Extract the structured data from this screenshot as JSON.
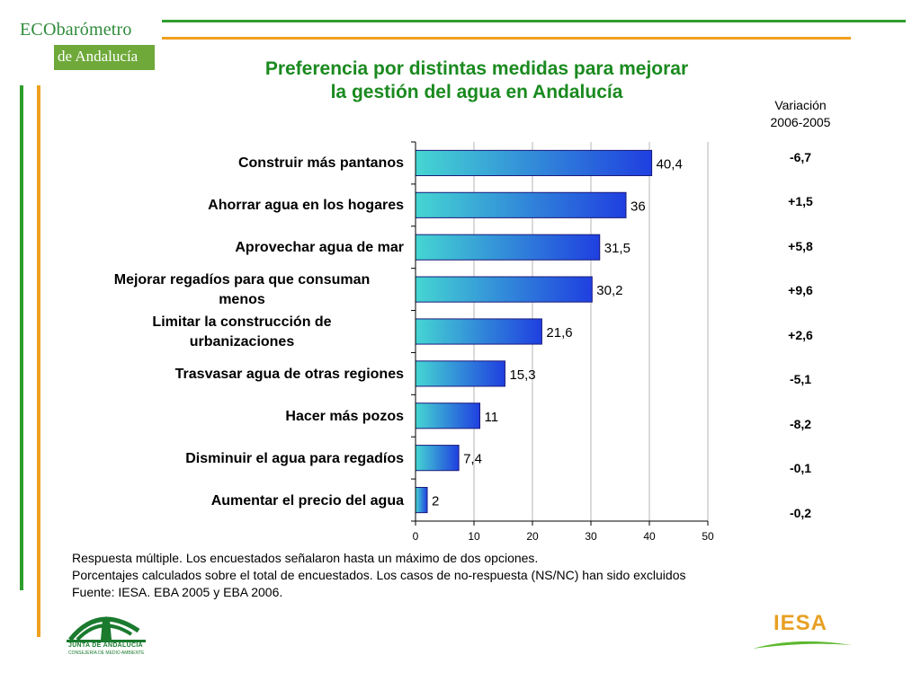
{
  "logo": {
    "eco_prefix": "ECO",
    "eco_word": "barómetro",
    "eco_region": "de Andalucía"
  },
  "title_line1": "Preferencia por distintas medidas para mejorar",
  "title_line2": "la gestión del agua en Andalucía",
  "variation_header_line1": "Variación",
  "variation_header_line2": "2006-2005",
  "variations": [
    "-6,7",
    "+1,5",
    "+5,8",
    "+9,6",
    "+2,6",
    "-5,1",
    "-8,2",
    "-0,1",
    "-0,2"
  ],
  "chart_data": {
    "type": "bar",
    "orientation": "horizontal",
    "categories": [
      [
        "Construir más pantanos"
      ],
      [
        "Ahorrar agua en los hogares"
      ],
      [
        "Aprovechar agua de mar"
      ],
      [
        "Mejorar regadíos para que consuman",
        "menos"
      ],
      [
        "Limitar la construcción de",
        "urbanizaciones"
      ],
      [
        "Trasvasar agua de otras regiones"
      ],
      [
        "Hacer más pozos"
      ],
      [
        "Disminuir el agua para regadíos"
      ],
      [
        "Aumentar el precio del agua"
      ]
    ],
    "values": [
      40.4,
      36,
      31.5,
      30.2,
      21.6,
      15.3,
      11,
      7.4,
      2
    ],
    "value_labels": [
      "40,4",
      "36",
      "31,5",
      "30,2",
      "21,6",
      "15,3",
      "11",
      "7,4",
      "2"
    ],
    "xlim": [
      0,
      50
    ],
    "x_ticks": [
      "0",
      "10",
      "20",
      "30",
      "40",
      "50"
    ],
    "grid": true
  },
  "footnotes": [
    "Respuesta múltiple. Los encuestados señalaron hasta un máximo de dos opciones.",
    "Porcentajes calculados sobre el total de encuestados. Los casos de no-respuesta (NS/NC) han sido excluidos",
    "Fuente: IESA. EBA 2005 y EBA 2006."
  ],
  "junta_logo": {
    "line1": "JUNTA DE ANDALUCIA",
    "line2": "CONSEJERÍA DE MEDIO AMBIENTE"
  },
  "iesa_logo": "IESA",
  "colors": {
    "title_green": "#1a8a1f",
    "frame_green": "#2e9e2e",
    "frame_orange": "#f0a020",
    "bar_start": "#45d6d2",
    "bar_end": "#1f3fe0"
  }
}
